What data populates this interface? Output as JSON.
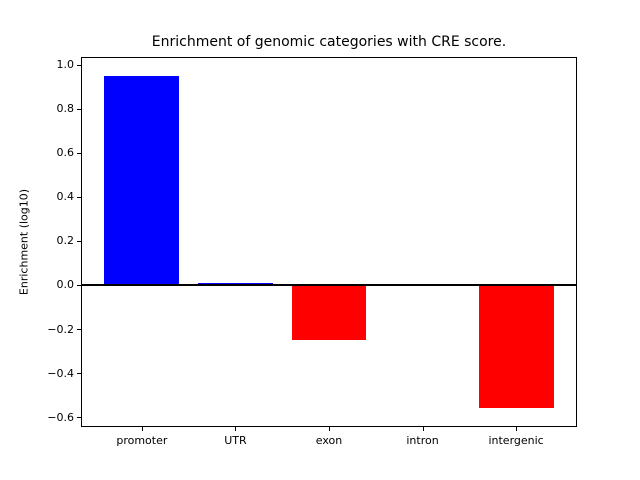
{
  "figure": {
    "background": "#ffffff",
    "text_color": "#000000",
    "axis_color": "#000000"
  },
  "chart_data": {
    "type": "bar",
    "title": "Enrichment of genomic categories with CRE score.",
    "xlabel": "",
    "ylabel": "Enrichment (log10)",
    "categories": [
      "promoter",
      "UTR",
      "exon",
      "intron",
      "intergenic"
    ],
    "values": [
      0.95,
      0.01,
      -0.25,
      0.0,
      -0.56
    ],
    "bar_colors": [
      "#0000ff",
      "#0000ff",
      "#ff0000",
      "#ff0000",
      "#ff0000"
    ],
    "positive_color": "#0000ff",
    "negative_color": "#ff0000",
    "bar_width_fraction": 0.8,
    "xlim": [
      -0.64,
      4.64
    ],
    "ylim": [
      -0.64,
      1.03
    ],
    "yticks": [
      {
        "value": 1.0,
        "label": "1.0"
      },
      {
        "value": 0.8,
        "label": "0.8"
      },
      {
        "value": 0.6,
        "label": "0.6"
      },
      {
        "value": 0.4,
        "label": "0.4"
      },
      {
        "value": 0.2,
        "label": "0.2"
      },
      {
        "value": 0.0,
        "label": "0.0"
      },
      {
        "value": -0.2,
        "label": "−0.2"
      },
      {
        "value": -0.4,
        "label": "−0.4"
      },
      {
        "value": -0.6,
        "label": "−0.6"
      }
    ],
    "grid": false,
    "legend": null,
    "zero_line": {
      "show": true,
      "color": "#000000"
    }
  }
}
